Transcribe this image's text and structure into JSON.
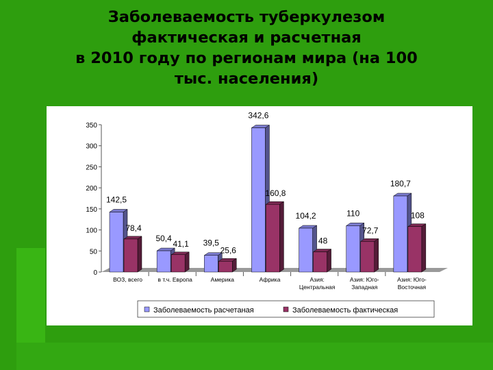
{
  "slide": {
    "title_lines": [
      "Заболеваемость туберкулезом",
      "фактическая и расчетная",
      "в 2010 году по регионам мира (на 100",
      "тыс. населения)"
    ]
  },
  "chart_data": {
    "type": "bar",
    "categories": [
      [
        "ВОЗ, всего"
      ],
      [
        "в т.ч. Европа"
      ],
      [
        "Америка"
      ],
      [
        "Африка"
      ],
      [
        "Азия:",
        "Центральная"
      ],
      [
        "Азия: Юго-",
        "Западная"
      ],
      [
        "Азия: Юго-",
        "Восточная"
      ]
    ],
    "series": [
      {
        "name": "Заболеваемость расчетаная",
        "values": [
          142.5,
          50.4,
          39.5,
          342.6,
          104.2,
          110,
          180.7
        ],
        "labels": [
          "142,5",
          "50,4",
          "39,5",
          "342,6",
          "104,2",
          "110",
          "180,7"
        ],
        "color": "#9999ff"
      },
      {
        "name": "Заболеваемость фактическая",
        "values": [
          78.4,
          41.1,
          25.6,
          160.8,
          48,
          72.7,
          108
        ],
        "labels": [
          "78,4",
          "41,1",
          "25,6",
          "160,8",
          "48",
          "72,7",
          "108"
        ],
        "color": "#993366"
      }
    ],
    "ylim": [
      0,
      350
    ],
    "yticks": [
      0,
      50,
      100,
      150,
      200,
      250,
      300,
      350
    ],
    "grid": false,
    "legend_position": "bottom"
  }
}
